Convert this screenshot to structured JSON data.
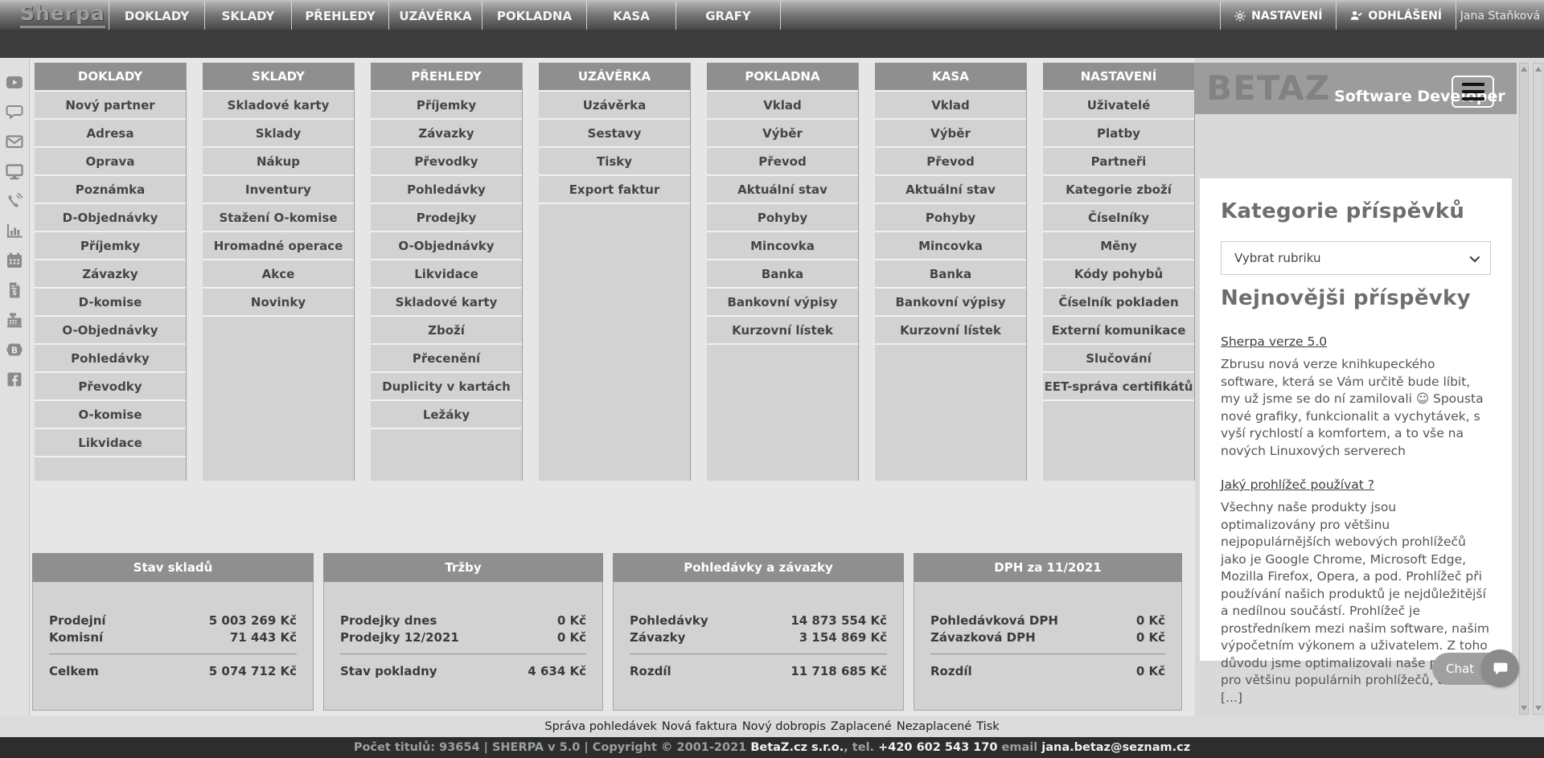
{
  "topbar": {
    "logo": "Sherpa",
    "nav": [
      "DOKLADY",
      "SKLADY",
      "PŘEHLEDY",
      "UZÁVĚRKA",
      "POKLADNA",
      "KASA",
      "GRAFY"
    ],
    "settings": "NASTAVENÍ",
    "logout": "ODHLÁŠENÍ",
    "user": "Jana Staňková"
  },
  "rail_icons": [
    "youtube",
    "comment",
    "mail",
    "monitor",
    "phone",
    "chart",
    "calendar",
    "invoice",
    "cash-register",
    "betaz",
    "facebook"
  ],
  "menu_columns": [
    {
      "title": "DOKLADY",
      "items": [
        "Nový partner",
        "Adresa",
        "Oprava",
        "Poznámka",
        "D-Objednávky",
        "Příjemky",
        "Závazky",
        "D-komise",
        "O-Objednávky",
        "Pohledávky",
        "Převodky",
        "O-komise",
        "Likvidace"
      ]
    },
    {
      "title": "SKLADY",
      "items": [
        "Skladové karty",
        "Sklady",
        "Nákup",
        "Inventury",
        "Stažení O-komise",
        "Hromadné operace",
        "Akce",
        "Novinky"
      ]
    },
    {
      "title": "PŘEHLEDY",
      "items": [
        "Příjemky",
        "Závazky",
        "Převodky",
        "Pohledávky",
        "Prodejky",
        "O-Objednávky",
        "Likvidace",
        "Skladové karty",
        "Zboží",
        "Přecenění",
        "Duplicity v kartách",
        "Ležáky"
      ]
    },
    {
      "title": "UZÁVĚRKA",
      "items": [
        "Uzávěrka",
        "Sestavy",
        "Tisky",
        "Export faktur"
      ]
    },
    {
      "title": "POKLADNA",
      "items": [
        "Vklad",
        "Výběr",
        "Převod",
        "Aktuální stav",
        "Pohyby",
        "Mincovka",
        "Banka",
        "Bankovní výpisy",
        "Kurzovní lístek"
      ]
    },
    {
      "title": "KASA",
      "items": [
        "Vklad",
        "Výběr",
        "Převod",
        "Aktuální stav",
        "Pohyby",
        "Mincovka",
        "Banka",
        "Bankovní výpisy",
        "Kurzovní lístek"
      ]
    },
    {
      "title": "NASTAVENÍ",
      "items": [
        "Uživatelé",
        "Platby",
        "Partneři",
        "Kategorie zboží",
        "Číselníky",
        "Měny",
        "Kódy pohybů",
        "Číselník pokladen",
        "Externí komunikace",
        "Slučování",
        "EET-správa certifikátů"
      ]
    }
  ],
  "summary_panels": [
    {
      "title": "Stav skladů",
      "rows": [
        [
          "Prodejní",
          "5 003 269 Kč"
        ],
        [
          "Komisní",
          "71 443 Kč"
        ]
      ],
      "total": [
        "Celkem",
        "5 074 712 Kč"
      ]
    },
    {
      "title": "Tržby",
      "rows": [
        [
          "Prodejky dnes",
          "0 Kč"
        ],
        [
          "Prodejky 12/2021",
          "0 Kč"
        ]
      ],
      "total": [
        "Stav pokladny",
        "4 634 Kč"
      ]
    },
    {
      "title": "Pohledávky a závazky",
      "rows": [
        [
          "Pohledávky",
          "14 873 554 Kč"
        ],
        [
          "Závazky",
          "3 154 869 Kč"
        ]
      ],
      "total": [
        "Rozdíl",
        "11 718 685 Kč"
      ]
    },
    {
      "title": "DPH za 11/2021",
      "rows": [
        [
          "Pohledávková DPH",
          "0 Kč"
        ],
        [
          "Závazková DPH",
          "0 Kč"
        ]
      ],
      "total": [
        "Rozdíl",
        "0 Kč"
      ]
    }
  ],
  "sidebar": {
    "brand": "BETAZ",
    "brand_sub": "Software Developer",
    "categories_title": "Kategorie příspěvků",
    "category_select": "Vybrat rubriku",
    "posts_title": "Nejnovějši příspěvky",
    "posts": [
      {
        "title": "Sherpa verze 5.0",
        "text": "Zbrusu nová verze knihkupeckého software, která se Vám určitě bude líbit, my už jsme se do ní zamilovali ☺ Spousta nové grafiky, funkcionalit a vychytávek, s vyší rychlostí a komfortem, a to vše na nových Linuxových serverech"
      },
      {
        "title": "Jaký prohlížeč používat ?",
        "text": "Všechny naše produkty jsou optimalizovány pro většinu nejpopulárnějších webových prohlížečů jako je Google Chrome, Microsoft Edge, Mozilla Firefox, Opera, a pod. Prohlížeč při používání našich produktů je nejdůležitější a nedílnou součástí. Prohlížeč je prostředníkem mezi našim software, našim výpočetním výkonem a uživatelem. Z toho důvodu jsme optimalizovali naše produkty pro většinu populárnih prohlížečů, ale... a [...]"
      }
    ],
    "chat_label": "Chat"
  },
  "footer_links": [
    "Správa pohledávek",
    "Nová faktura",
    "Nový dobropis",
    "Zaplacené",
    "Nezaplacené",
    "Tisk"
  ],
  "footer_info": {
    "parts": [
      {
        "text": "Počet titulů: 93654 | SHERPA v 5.0 | Copyright © 2001-2021 ",
        "bold": false
      },
      {
        "text": "BetaZ.cz s.r.o.",
        "bold": true
      },
      {
        "text": ", tel. ",
        "bold": false
      },
      {
        "text": "+420 602 543 170",
        "bold": true
      },
      {
        "text": " email ",
        "bold": false
      },
      {
        "text": "jana.betaz@seznam.cz",
        "bold": true
      }
    ]
  },
  "colors": {
    "menubar_dark": "#454545",
    "panel_gray": "#d2d2d2",
    "header_gray": "#8f8f8f",
    "footer_dark": "#2d2d2d"
  }
}
